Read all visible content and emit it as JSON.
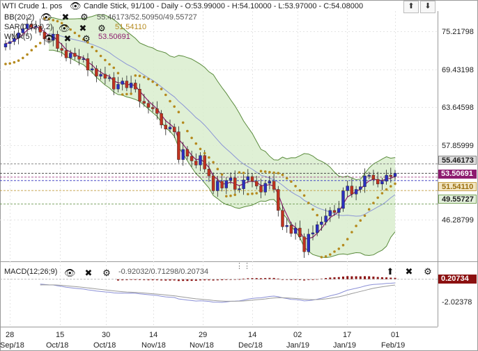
{
  "header": {
    "symbol": "WTI Crude 1. pos",
    "chart_info": "Candle Stick, 91/100 - Daily - O:53.99000 - H:54.10000 - L:53.97000 - C:54.08000"
  },
  "indicators": {
    "bb": {
      "label": "BB(20;2)",
      "values": "55.46173/52.50950/49.55727"
    },
    "sar": {
      "label": "SAR(0.02;0.2)",
      "value": "51.54110"
    },
    "wma": {
      "label": "WMA(5)",
      "value": "53.50691"
    }
  },
  "macd": {
    "label": "MACD(12;26;9)",
    "values": "-0.92032/0.71298/0.20734"
  },
  "colors": {
    "up": "#2b2fbf",
    "down": "#c0321f",
    "bb_fill": "#d9edce",
    "bb_line": "#5a8b3c",
    "sar": "#b58a1e",
    "wma": "#8d1b6f",
    "mid": "#8b95d6",
    "macd_bar": "#8b1010"
  },
  "tags": {
    "t1": "55.46173",
    "t2": "53.50691",
    "t3": "51.54110",
    "t4": "49.55727",
    "t5": "0.20734"
  },
  "chart_data": {
    "type": "candlestick",
    "interval": "Daily",
    "y_axis_labels": [
      "75.21798",
      "69.43198",
      "63.64598",
      "57.85999",
      "46.28799"
    ],
    "macd_axis_labels": [
      "-2.02378"
    ],
    "x_ticks": [
      "28",
      "15",
      "30",
      "14",
      "29",
      "14",
      "02",
      "17",
      "01"
    ],
    "x_months": [
      "Sep/18",
      "Oct/18",
      "Oct/18",
      "Nov/18",
      "Nov/18",
      "Dec/18",
      "Jan/19",
      "Jan/19",
      "Feb/19"
    ],
    "last_bar": {
      "open": 53.99,
      "high": 54.1,
      "low": 53.97,
      "close": 54.08
    },
    "bollinger": {
      "upper": 55.46173,
      "middle": 52.5095,
      "lower": 49.55727
    },
    "sar_last": 51.5411,
    "wma_last": 53.50691,
    "macd_last": {
      "macd": -0.92032,
      "signal": 0.71298,
      "histogram": 0.20734
    },
    "closes": [
      73.2,
      73.5,
      74.0,
      74.8,
      75.4,
      76.1,
      75.6,
      75.8,
      74.9,
      73.9,
      73.7,
      74.6,
      72.5,
      72.2,
      71.1,
      71.8,
      71.3,
      70.9,
      71.0,
      69.3,
      69.5,
      68.4,
      68.7,
      68.1,
      68.2,
      66.5,
      67.2,
      67.7,
      66.7,
      67.4,
      66.5,
      64.7,
      64.4,
      63.8,
      63.6,
      62.9,
      61.2,
      60.6,
      60.9,
      60.2,
      56.1,
      57.6,
      56.6,
      55.9,
      55.3,
      56.7,
      54.7,
      53.7,
      51.5,
      52.9,
      51.9,
      53.0,
      53.4,
      51.7,
      51.8,
      53.1,
      53.6,
      52.9,
      52.2,
      51.3,
      52.6,
      52.9,
      51.7,
      48.6,
      46.2,
      46.4,
      45.2,
      46.0,
      44.7,
      42.5,
      45.1,
      45.3,
      46.5,
      46.9,
      47.8,
      48.6,
      48.3,
      48.9,
      51.5,
      52.2,
      51.0,
      51.7,
      52.1,
      53.7,
      53.8,
      53.2,
      52.5,
      52.9,
      53.8,
      53.6,
      54.1
    ]
  }
}
